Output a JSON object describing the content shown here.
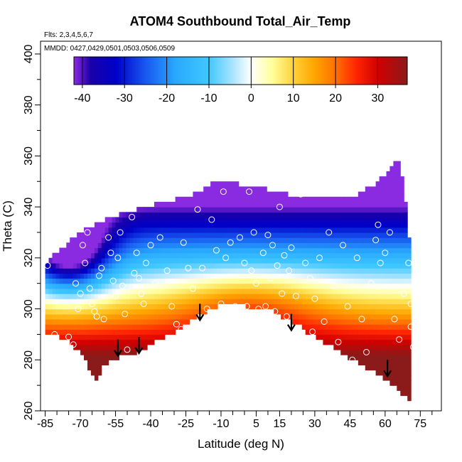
{
  "chart_data": {
    "type": "heatmap",
    "title": "ATOM4 Southbound Total_Air_Temp",
    "annotations": [
      "Flts: 2,3,4,5,6,7",
      "MMDD: 0427,0429,0501,0503,0506,0509"
    ],
    "xlabel": "Latitude (deg N)",
    "ylabel": "Theta (C)",
    "xlim": [
      -87,
      84
    ],
    "ylim": [
      260,
      405
    ],
    "x_ticks": [
      -85,
      -70,
      -55,
      -40,
      -25,
      -10,
      5,
      15,
      30,
      45,
      60,
      75
    ],
    "x_tick_labels": [
      "-85",
      "-70",
      "-55",
      "-40",
      "-25",
      "-10",
      "5",
      "15",
      "30",
      "45",
      "60",
      "75"
    ],
    "y_ticks": [
      260,
      280,
      300,
      320,
      340,
      360,
      380,
      400
    ],
    "y_tick_labels": [
      "260",
      "280",
      "300",
      "320",
      "340",
      "360",
      "380",
      "400"
    ],
    "colorbar": {
      "range": [
        -42,
        37
      ],
      "ticks": [
        -40,
        -30,
        -20,
        -10,
        0,
        10,
        20,
        30
      ],
      "tick_labels": [
        "-40",
        "-30",
        "-20",
        "-10",
        "0",
        "10",
        "20",
        "30"
      ],
      "stops": [
        {
          "v": -42,
          "color": "#8a2be2"
        },
        {
          "v": -38,
          "color": "#1a00a8"
        },
        {
          "v": -32,
          "color": "#0000c8"
        },
        {
          "v": -25,
          "color": "#1858f0"
        },
        {
          "v": -18,
          "color": "#28a8ff"
        },
        {
          "v": -10,
          "color": "#40c8ff"
        },
        {
          "v": -5,
          "color": "#9ee0ff"
        },
        {
          "v": 0,
          "color": "#ffffff"
        },
        {
          "v": 5,
          "color": "#ffff9a"
        },
        {
          "v": 10,
          "color": "#ffd23a"
        },
        {
          "v": 15,
          "color": "#ffa500"
        },
        {
          "v": 20,
          "color": "#ff7000"
        },
        {
          "v": 25,
          "color": "#ff2400"
        },
        {
          "v": 30,
          "color": "#d00000"
        },
        {
          "v": 37,
          "color": "#8b1a1a"
        }
      ]
    },
    "field": {
      "lower_boundary": [
        [
          -85,
          291
        ],
        [
          -80,
          290
        ],
        [
          -75,
          287
        ],
        [
          -70,
          283
        ],
        [
          -66,
          276
        ],
        [
          -63,
          272
        ],
        [
          -60,
          278
        ],
        [
          -56,
          280
        ],
        [
          -52,
          282
        ],
        [
          -48,
          282
        ],
        [
          -44,
          284
        ],
        [
          -40,
          286
        ],
        [
          -36,
          288
        ],
        [
          -32,
          290
        ],
        [
          -28,
          292
        ],
        [
          -24,
          295
        ],
        [
          -20,
          297
        ],
        [
          -16,
          299
        ],
        [
          -12,
          301
        ],
        [
          -8,
          302
        ],
        [
          -4,
          302
        ],
        [
          0,
          301
        ],
        [
          4,
          301
        ],
        [
          8,
          300
        ],
        [
          12,
          299
        ],
        [
          16,
          297
        ],
        [
          20,
          295
        ],
        [
          24,
          293
        ],
        [
          28,
          290
        ],
        [
          32,
          288
        ],
        [
          36,
          286
        ],
        [
          40,
          284
        ],
        [
          44,
          281
        ],
        [
          48,
          279
        ],
        [
          52,
          277
        ],
        [
          56,
          275
        ],
        [
          60,
          272
        ],
        [
          64,
          270
        ],
        [
          68,
          266
        ],
        [
          71,
          264
        ]
      ],
      "upper_boundary": [
        [
          -85,
          318
        ],
        [
          -82,
          321
        ],
        [
          -78,
          324
        ],
        [
          -74,
          327
        ],
        [
          -70,
          330
        ],
        [
          -66,
          332
        ],
        [
          -62,
          334
        ],
        [
          -58,
          336
        ],
        [
          -54,
          337
        ],
        [
          -50,
          338
        ],
        [
          -46,
          339
        ],
        [
          -42,
          340
        ],
        [
          -38,
          341
        ],
        [
          -34,
          342
        ],
        [
          -30,
          343
        ],
        [
          -26,
          344
        ],
        [
          -22,
          345
        ],
        [
          -18,
          347
        ],
        [
          -14,
          349
        ],
        [
          -10,
          350
        ],
        [
          -6,
          349
        ],
        [
          -2,
          349
        ],
        [
          2,
          348
        ],
        [
          6,
          348
        ],
        [
          10,
          347
        ],
        [
          14,
          346
        ],
        [
          18,
          345
        ],
        [
          22,
          344
        ],
        [
          26,
          344
        ],
        [
          30,
          343
        ],
        [
          34,
          343
        ],
        [
          38,
          343
        ],
        [
          42,
          343
        ],
        [
          46,
          344
        ],
        [
          50,
          346
        ],
        [
          54,
          348
        ],
        [
          58,
          351
        ],
        [
          62,
          355
        ],
        [
          65,
          360
        ],
        [
          68,
          350
        ],
        [
          71,
          320
        ]
      ],
      "core": {
        "center": [
          2,
          302
        ],
        "sigma_lat": 22,
        "sigma_theta": 10,
        "amplitude": 32
      },
      "cold": {
        "center": [
          -75,
          323
        ],
        "sigma_lat": 12,
        "sigma_theta": 12,
        "amplitude": 36
      },
      "lapse_per_degC": 1.35,
      "theta_reference": 290
    },
    "series": [
      {
        "name": "observations",
        "points": [
          [
            -84,
            317
          ],
          [
            -81,
            290
          ],
          [
            -78,
            285
          ],
          [
            -75,
            289
          ],
          [
            -73,
            286
          ],
          [
            -72,
            310
          ],
          [
            -71,
            300
          ],
          [
            -70,
            306
          ],
          [
            -69,
            325
          ],
          [
            -68,
            318
          ],
          [
            -67,
            330
          ],
          [
            -66,
            308
          ],
          [
            -65,
            302
          ],
          [
            -64,
            299
          ],
          [
            -63,
            297
          ],
          [
            -62,
            313
          ],
          [
            -61,
            316
          ],
          [
            -60,
            296
          ],
          [
            -58,
            328
          ],
          [
            -57,
            322
          ],
          [
            -56,
            311
          ],
          [
            -55,
            305
          ],
          [
            -54,
            320
          ],
          [
            -53,
            330
          ],
          [
            -52,
            309
          ],
          [
            -51,
            298
          ],
          [
            -50,
            284
          ],
          [
            -48,
            336
          ],
          [
            -47,
            314
          ],
          [
            -46,
            322
          ],
          [
            -45,
            312
          ],
          [
            -44,
            306
          ],
          [
            -43,
            302
          ],
          [
            -42,
            318
          ],
          [
            -40,
            325
          ],
          [
            -38,
            310
          ],
          [
            -36,
            328
          ],
          [
            -35,
            286
          ],
          [
            -33,
            315
          ],
          [
            -31,
            301
          ],
          [
            -29,
            294
          ],
          [
            -27,
            292
          ],
          [
            -26,
            326
          ],
          [
            -24,
            316
          ],
          [
            -22,
            308
          ],
          [
            -20,
            339
          ],
          [
            -18,
            316
          ],
          [
            -16,
            300
          ],
          [
            -14,
            335
          ],
          [
            -12,
            323
          ],
          [
            -10,
            302
          ],
          [
            -9,
            346
          ],
          [
            -8,
            320
          ],
          [
            -6,
            326
          ],
          [
            -4,
            301
          ],
          [
            -2,
            328
          ],
          [
            0,
            318
          ],
          [
            1,
            301
          ],
          [
            2,
            346
          ],
          [
            3,
            315
          ],
          [
            4,
            330
          ],
          [
            5,
            310
          ],
          [
            6,
            300
          ],
          [
            8,
            322
          ],
          [
            9,
            301
          ],
          [
            10,
            329
          ],
          [
            11,
            312
          ],
          [
            12,
            325
          ],
          [
            13,
            299
          ],
          [
            14,
            317
          ],
          [
            15,
            340
          ],
          [
            16,
            306
          ],
          [
            17,
            321
          ],
          [
            18,
            297
          ],
          [
            19,
            315
          ],
          [
            20,
            324
          ],
          [
            22,
            305
          ],
          [
            23,
            292
          ],
          [
            24,
            345
          ],
          [
            26,
            318
          ],
          [
            28,
            312
          ],
          [
            29,
            291
          ],
          [
            30,
            304
          ],
          [
            32,
            320
          ],
          [
            34,
            295
          ],
          [
            36,
            330
          ],
          [
            38,
            309
          ],
          [
            40,
            287
          ],
          [
            42,
            325
          ],
          [
            44,
            301
          ],
          [
            46,
            280
          ],
          [
            48,
            320
          ],
          [
            50,
            296
          ],
          [
            52,
            283
          ],
          [
            54,
            310
          ],
          [
            56,
            327
          ],
          [
            57,
            333
          ],
          [
            58,
            318
          ],
          [
            60,
            322
          ],
          [
            62,
            330
          ],
          [
            64,
            296
          ],
          [
            66,
            288
          ],
          [
            68,
            306
          ],
          [
            70,
            318
          ],
          [
            71,
            302
          ],
          [
            71,
            293
          ],
          [
            72,
            285
          ]
        ]
      },
      {
        "name": "southbound-descents",
        "arrows": [
          [
            -54,
            288
          ],
          [
            -45,
            289
          ],
          [
            -19,
            302
          ],
          [
            20,
            298
          ],
          [
            61,
            280
          ]
        ]
      }
    ]
  }
}
